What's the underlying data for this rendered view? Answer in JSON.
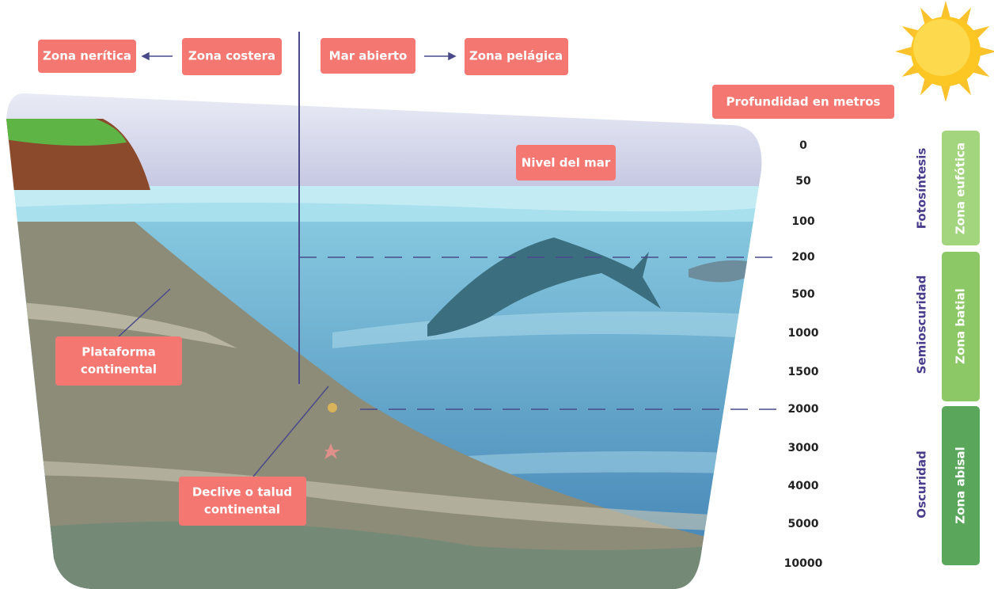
{
  "header": {
    "left": [
      "Zona nerítica",
      "Zona costera"
    ],
    "right": [
      "Mar abierto",
      "Zona pelágica"
    ]
  },
  "depth": {
    "title": "Profundidad en metros",
    "levels": [
      0,
      50,
      100,
      200,
      500,
      1000,
      1500,
      2000,
      3000,
      4000,
      5000,
      10000
    ]
  },
  "sea_level": "Nivel del mar",
  "light": [
    "Fotosíntesis",
    "Semioscuridad",
    "Oscuridad"
  ],
  "zones": [
    "Zona eufótica",
    "Zona batial",
    "Zona abisal"
  ],
  "seabed": {
    "shelf": [
      "Plataforma",
      "continental"
    ],
    "slope": [
      "Declive o talud",
      "continental"
    ]
  }
}
